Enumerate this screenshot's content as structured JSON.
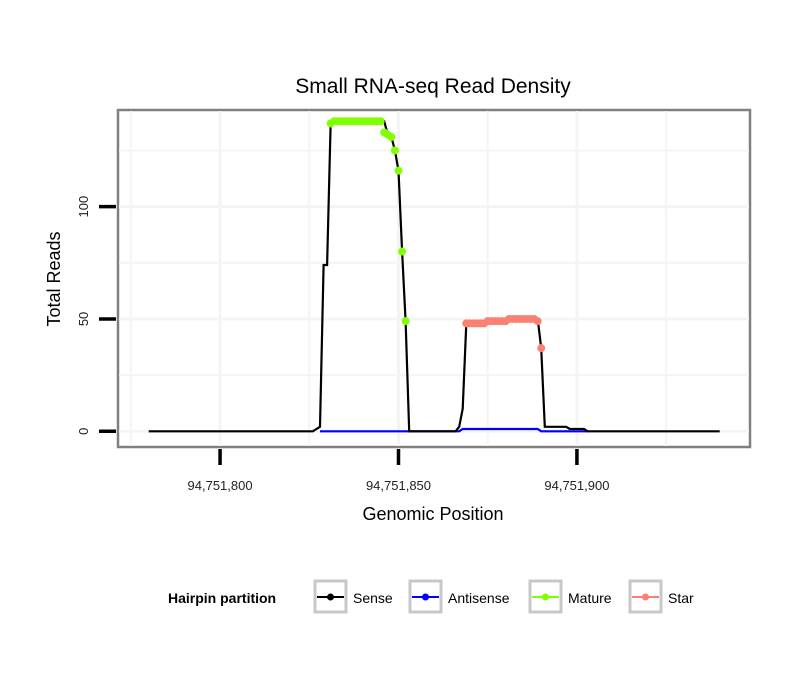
{
  "chart_data": {
    "type": "line",
    "title": "Small RNA-seq Read Density",
    "xlabel": "Genomic Position",
    "ylabel": "Total Reads",
    "xlim": [
      94751771.4,
      94751948.5
    ],
    "ylim": [
      -7,
      143
    ],
    "x_ticks": [
      94751800,
      94751850,
      94751900
    ],
    "x_tick_labels": [
      "94,751,800",
      "94,751,850",
      "94,751,900"
    ],
    "y_ticks": [
      0,
      50,
      100
    ],
    "y_tick_labels": [
      "0",
      "50",
      "100"
    ],
    "grid": true,
    "legend": {
      "title": "Hairpin partition",
      "placement": "bottom",
      "entries": [
        "Sense",
        "Antisense",
        "Mature",
        "Star"
      ]
    },
    "series": [
      {
        "name": "Sense",
        "color": "#000000",
        "markers": false,
        "points": [
          [
            94751780,
            0
          ],
          [
            94751826,
            0
          ],
          [
            94751828,
            2
          ],
          [
            94751829,
            74
          ],
          [
            94751830,
            74
          ],
          [
            94751831,
            138
          ],
          [
            94751846,
            138
          ],
          [
            94751847,
            132
          ],
          [
            94751848,
            131
          ],
          [
            94751849,
            125
          ],
          [
            94751850,
            116
          ],
          [
            94751851,
            80
          ],
          [
            94751852,
            49
          ],
          [
            94751853,
            0
          ],
          [
            94751866,
            0
          ],
          [
            94751867,
            2
          ],
          [
            94751868,
            10
          ],
          [
            94751869,
            48
          ],
          [
            94751874,
            48
          ],
          [
            94751875,
            49
          ],
          [
            94751880,
            49
          ],
          [
            94751881,
            50
          ],
          [
            94751889,
            50
          ],
          [
            94751890,
            37
          ],
          [
            94751891,
            2
          ],
          [
            94751897,
            2
          ],
          [
            94751898,
            1
          ],
          [
            94751902,
            1
          ],
          [
            94751903,
            0
          ],
          [
            94751940,
            0
          ]
        ]
      },
      {
        "name": "Antisense",
        "color": "#0000ff",
        "markers": false,
        "points": [
          [
            94751828,
            0
          ],
          [
            94751867,
            0
          ],
          [
            94751868,
            1
          ],
          [
            94751889,
            1
          ],
          [
            94751890,
            0
          ],
          [
            94751903,
            0
          ]
        ]
      },
      {
        "name": "Mature",
        "color": "#7fff00",
        "markers": true,
        "points": [
          [
            94751831,
            137
          ],
          [
            94751832,
            138
          ],
          [
            94751833,
            138
          ],
          [
            94751834,
            138
          ],
          [
            94751835,
            138
          ],
          [
            94751836,
            138
          ],
          [
            94751837,
            138
          ],
          [
            94751838,
            138
          ],
          [
            94751839,
            138
          ],
          [
            94751840,
            138
          ],
          [
            94751841,
            138
          ],
          [
            94751842,
            138
          ],
          [
            94751843,
            138
          ],
          [
            94751844,
            138
          ],
          [
            94751845,
            138
          ],
          [
            94751846,
            133
          ],
          [
            94751847,
            132
          ],
          [
            94751848,
            131
          ],
          [
            94751849,
            125
          ],
          [
            94751850,
            116
          ],
          [
            94751851,
            80
          ],
          [
            94751852,
            49
          ]
        ]
      },
      {
        "name": "Star",
        "color": "#fa8072",
        "markers": true,
        "points": [
          [
            94751869,
            48
          ],
          [
            94751870,
            48
          ],
          [
            94751871,
            48
          ],
          [
            94751872,
            48
          ],
          [
            94751873,
            48
          ],
          [
            94751874,
            48
          ],
          [
            94751875,
            49
          ],
          [
            94751876,
            49
          ],
          [
            94751877,
            49
          ],
          [
            94751878,
            49
          ],
          [
            94751879,
            49
          ],
          [
            94751880,
            49
          ],
          [
            94751881,
            50
          ],
          [
            94751882,
            50
          ],
          [
            94751883,
            50
          ],
          [
            94751884,
            50
          ],
          [
            94751885,
            50
          ],
          [
            94751886,
            50
          ],
          [
            94751887,
            50
          ],
          [
            94751888,
            50
          ],
          [
            94751889,
            49
          ],
          [
            94751890,
            37
          ]
        ]
      }
    ]
  }
}
